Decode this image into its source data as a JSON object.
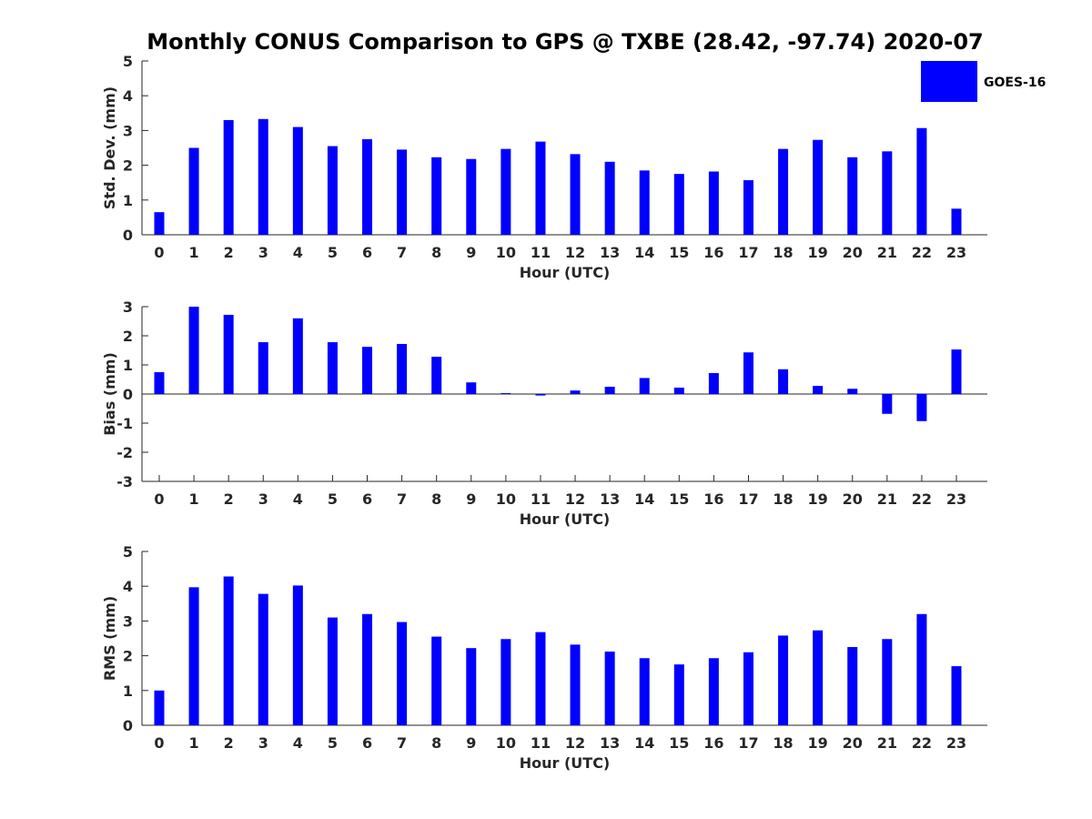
{
  "chart_data": {
    "title": "Monthly CONUS Comparison to GPS @ TXBE (28.42, -97.74) 2020-07",
    "legend": {
      "entries": [
        "GOES-16"
      ],
      "placement": "top-right"
    },
    "bar_color": "#0000ff",
    "panels": [
      {
        "type": "bar",
        "xlabel": "Hour (UTC)",
        "ylabel": "Std. Dev. (mm)",
        "ylim": [
          0,
          5
        ],
        "yticks": [
          "0",
          "1",
          "2",
          "3",
          "4",
          "5"
        ],
        "categories": [
          "0",
          "1",
          "2",
          "3",
          "4",
          "5",
          "6",
          "7",
          "8",
          "9",
          "10",
          "11",
          "12",
          "13",
          "14",
          "15",
          "16",
          "17",
          "18",
          "19",
          "20",
          "21",
          "22",
          "23"
        ],
        "series": [
          {
            "name": "GOES-16",
            "values": [
              0.65,
              2.5,
              3.3,
              3.33,
              3.1,
              2.55,
              2.75,
              2.45,
              2.23,
              2.18,
              2.47,
              2.68,
              2.32,
              2.1,
              1.85,
              1.75,
              1.82,
              1.57,
              2.47,
              2.73,
              2.23,
              2.4,
              3.07,
              0.75
            ]
          }
        ]
      },
      {
        "type": "bar",
        "xlabel": "Hour (UTC)",
        "ylabel": "Bias (mm)",
        "ylim": [
          -3,
          3
        ],
        "yticks": [
          "-3",
          "-2",
          "-1",
          "0",
          "1",
          "2",
          "3"
        ],
        "categories": [
          "0",
          "1",
          "2",
          "3",
          "4",
          "5",
          "6",
          "7",
          "8",
          "9",
          "10",
          "11",
          "12",
          "13",
          "14",
          "15",
          "16",
          "17",
          "18",
          "19",
          "20",
          "21",
          "22",
          "23"
        ],
        "series": [
          {
            "name": "GOES-16",
            "values": [
              0.75,
              3.0,
              2.72,
              1.78,
              2.6,
              1.78,
              1.62,
              1.72,
              1.28,
              0.4,
              0.03,
              -0.05,
              0.12,
              0.25,
              0.55,
              0.22,
              0.72,
              1.43,
              0.85,
              0.28,
              0.18,
              -0.68,
              -0.93,
              1.53
            ]
          }
        ]
      },
      {
        "type": "bar",
        "xlabel": "Hour (UTC)",
        "ylabel": "RMS (mm)",
        "ylim": [
          0,
          5
        ],
        "yticks": [
          "0",
          "1",
          "2",
          "3",
          "4",
          "5"
        ],
        "categories": [
          "0",
          "1",
          "2",
          "3",
          "4",
          "5",
          "6",
          "7",
          "8",
          "9",
          "10",
          "11",
          "12",
          "13",
          "14",
          "15",
          "16",
          "17",
          "18",
          "19",
          "20",
          "21",
          "22",
          "23"
        ],
        "series": [
          {
            "name": "GOES-16",
            "values": [
              1.0,
              3.97,
              4.28,
              3.78,
              4.02,
              3.1,
              3.2,
              2.97,
              2.55,
              2.22,
              2.48,
              2.68,
              2.32,
              2.12,
              1.93,
              1.75,
              1.93,
              2.1,
              2.58,
              2.73,
              2.25,
              2.48,
              3.2,
              1.7
            ]
          }
        ]
      }
    ]
  }
}
